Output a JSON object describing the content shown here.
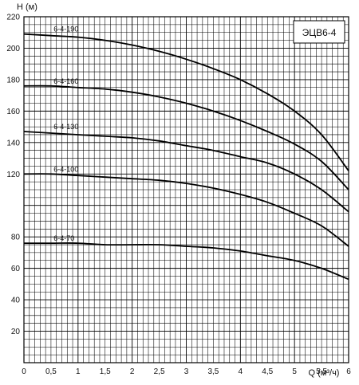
{
  "chart_data": {
    "type": "line",
    "title": "",
    "xlabel": "Q (м³/ч)",
    "ylabel": "H (м)",
    "xlim": [
      0,
      6
    ],
    "ylim": [
      0,
      220
    ],
    "x_ticks": [
      "0",
      "0,5",
      "1",
      "1,5",
      "2",
      "2,5",
      "3",
      "3,5",
      "4",
      "4,5",
      "5",
      "5,5",
      "6"
    ],
    "y_ticks": [
      "20",
      "40",
      "60",
      "80",
      "120",
      "140",
      "160",
      "180",
      "200",
      "220"
    ],
    "grid": true,
    "legend_box": "ЭЦВ6-4",
    "legend_placement": "top-right",
    "line_color": "#000000",
    "series": [
      {
        "name": "6-4-190",
        "x": [
          0,
          0.5,
          1,
          1.5,
          2,
          2.5,
          3,
          3.5,
          4,
          4.5,
          5,
          5.5,
          6
        ],
        "y": [
          209,
          208,
          207,
          205,
          202,
          198,
          193,
          187,
          180,
          171,
          160,
          145,
          122
        ]
      },
      {
        "name": "6-4-160",
        "x": [
          0,
          0.5,
          1,
          1.5,
          2,
          2.5,
          3,
          3.5,
          4,
          4.5,
          5,
          5.5,
          6
        ],
        "y": [
          176,
          176,
          175,
          174,
          172,
          169,
          165,
          160,
          154,
          147,
          139,
          128,
          110
        ]
      },
      {
        "name": "6-4-130",
        "x": [
          0,
          0.5,
          1,
          1.5,
          2,
          2.5,
          3,
          3.5,
          4,
          4.5,
          5,
          5.5,
          6
        ],
        "y": [
          147,
          146,
          145,
          144,
          143,
          141,
          138,
          135,
          131,
          127,
          120,
          110,
          96
        ]
      },
      {
        "name": "6-4-100",
        "x": [
          0,
          0.5,
          1,
          1.5,
          2,
          2.5,
          3,
          3.5,
          4,
          4.5,
          5,
          5.5,
          6
        ],
        "y": [
          120,
          120,
          119,
          118,
          117,
          116,
          114,
          111,
          107,
          102,
          95,
          87,
          74
        ]
      },
      {
        "name": "6-4-70",
        "x": [
          0,
          0.5,
          1,
          1.5,
          2,
          2.5,
          3,
          3.5,
          4,
          4.5,
          5,
          5.5,
          6
        ],
        "y": [
          76,
          76,
          76,
          75,
          75,
          75,
          74,
          73,
          71,
          68,
          65,
          60,
          53
        ]
      }
    ]
  }
}
